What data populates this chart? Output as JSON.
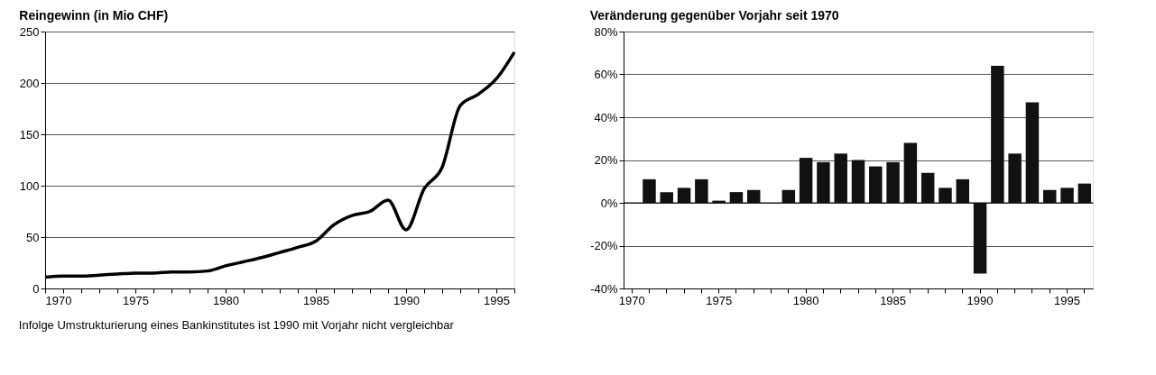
{
  "chart_data": [
    {
      "type": "line",
      "title": "Reingewinn (in Mio CHF)",
      "x": [
        1970,
        1971,
        1972,
        1973,
        1974,
        1975,
        1976,
        1977,
        1978,
        1979,
        1980,
        1981,
        1982,
        1983,
        1984,
        1985,
        1986,
        1987,
        1988,
        1989,
        1990,
        1991,
        1992,
        1993,
        1994,
        1995,
        1996
      ],
      "series": [
        {
          "color": "#000000",
          "values": [
            11,
            12,
            12,
            13,
            14,
            15,
            15,
            16,
            16,
            17,
            22,
            26,
            30,
            35,
            40,
            46,
            62,
            71,
            75,
            86,
            57,
            97,
            118,
            178,
            189,
            204,
            230
          ]
        }
      ],
      "xlim": [
        1970,
        1996
      ],
      "xticks": [
        1970,
        {
          "value": 1971,
          "label": null
        },
        {
          "value": 1972,
          "label": null
        },
        {
          "value": 1973,
          "label": null
        },
        {
          "value": 1974,
          "label": null
        },
        1975,
        {
          "value": 1976,
          "label": null
        },
        {
          "value": 1977,
          "label": null
        },
        {
          "value": 1978,
          "label": null
        },
        {
          "value": 1979,
          "label": null
        },
        1980,
        {
          "value": 1981,
          "label": null
        },
        {
          "value": 1982,
          "label": null
        },
        {
          "value": 1983,
          "label": null
        },
        {
          "value": 1984,
          "label": null
        },
        1985,
        {
          "value": 1986,
          "label": null
        },
        {
          "value": 1987,
          "label": null
        },
        {
          "value": 1988,
          "label": null
        },
        {
          "value": 1989,
          "label": null
        },
        1990,
        {
          "value": 1991,
          "label": null
        },
        {
          "value": 1992,
          "label": null
        },
        {
          "value": 1993,
          "label": null
        },
        {
          "value": 1994,
          "label": null
        },
        1995,
        {
          "value": 1996,
          "label": null
        }
      ],
      "ylim": [
        0,
        250
      ],
      "yticks": [
        0,
        50,
        100,
        150,
        200,
        250
      ],
      "grid": "y",
      "marker": "none",
      "line_style": "solid"
    },
    {
      "type": "bar",
      "title": "Veränderung gegenüber Vorjahr seit 1970",
      "categories": [
        "1970",
        null,
        null,
        null,
        null,
        "1975",
        null,
        null,
        null,
        null,
        "1980",
        null,
        null,
        null,
        null,
        "1985",
        null,
        null,
        null,
        null,
        "1990",
        null,
        null,
        null,
        null,
        "1995",
        null
      ],
      "series": [
        {
          "color": "#111111",
          "values": [
            null,
            11,
            5,
            7,
            11,
            1,
            5,
            6,
            null,
            6,
            21,
            19,
            23,
            20,
            17,
            19,
            28,
            14,
            7,
            11,
            -33,
            64,
            23,
            47,
            6,
            7,
            9
          ]
        }
      ],
      "ylim": [
        -40,
        80
      ],
      "yticks": [
        {
          "value": -40,
          "label": "-40%"
        },
        {
          "value": -20,
          "label": "-20%"
        },
        {
          "value": 0,
          "label": "0%"
        },
        {
          "value": 20,
          "label": "20%"
        },
        {
          "value": 40,
          "label": "40%"
        },
        {
          "value": 60,
          "label": "60%"
        },
        {
          "value": 80,
          "label": "80%"
        }
      ],
      "grid": "y",
      "annotations": [
        "Infolge Umstrukturierung eines Bankinstitutes ist 1990 mit Vorjahr nicht vergleichbar"
      ]
    }
  ]
}
